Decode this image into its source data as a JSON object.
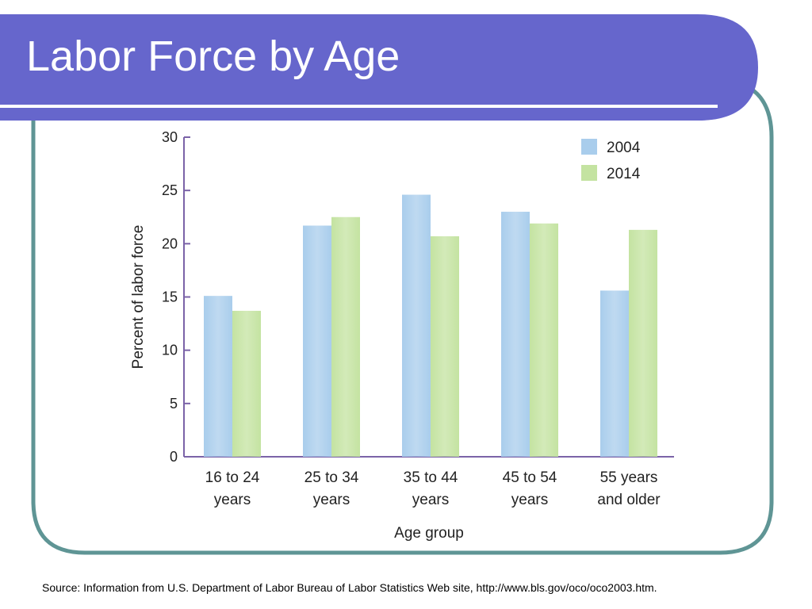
{
  "slide": {
    "title": "Labor Force by Age",
    "source": "Source: Information from U.S. Department of Labor Bureau of Labor Statistics Web site, http://www.bls.gov/oco/oco2003.htm."
  },
  "theme": {
    "title_bar_color": "#6666cc",
    "frame_border_color": "#5f9595",
    "axis_color": "#7b63a8"
  },
  "chart_data": {
    "type": "bar",
    "title": "",
    "xlabel": "Age group",
    "ylabel": "Percent of labor force",
    "ylim": [
      0,
      30
    ],
    "yticks": [
      0,
      5,
      10,
      15,
      20,
      25,
      30
    ],
    "grid": false,
    "legend_position": "top-right",
    "categories": [
      [
        "16 to 24",
        "years"
      ],
      [
        "25 to 34",
        "years"
      ],
      [
        "35 to 44",
        "years"
      ],
      [
        "45 to 54",
        "years"
      ],
      [
        "55 years",
        "and older"
      ]
    ],
    "series": [
      {
        "name": "2004",
        "color": "#a9cdec",
        "values": [
          15.1,
          21.7,
          24.6,
          23.0,
          15.6
        ]
      },
      {
        "name": "2014",
        "color": "#c4e3a1",
        "values": [
          13.7,
          22.5,
          20.7,
          21.9,
          21.3
        ]
      }
    ]
  }
}
